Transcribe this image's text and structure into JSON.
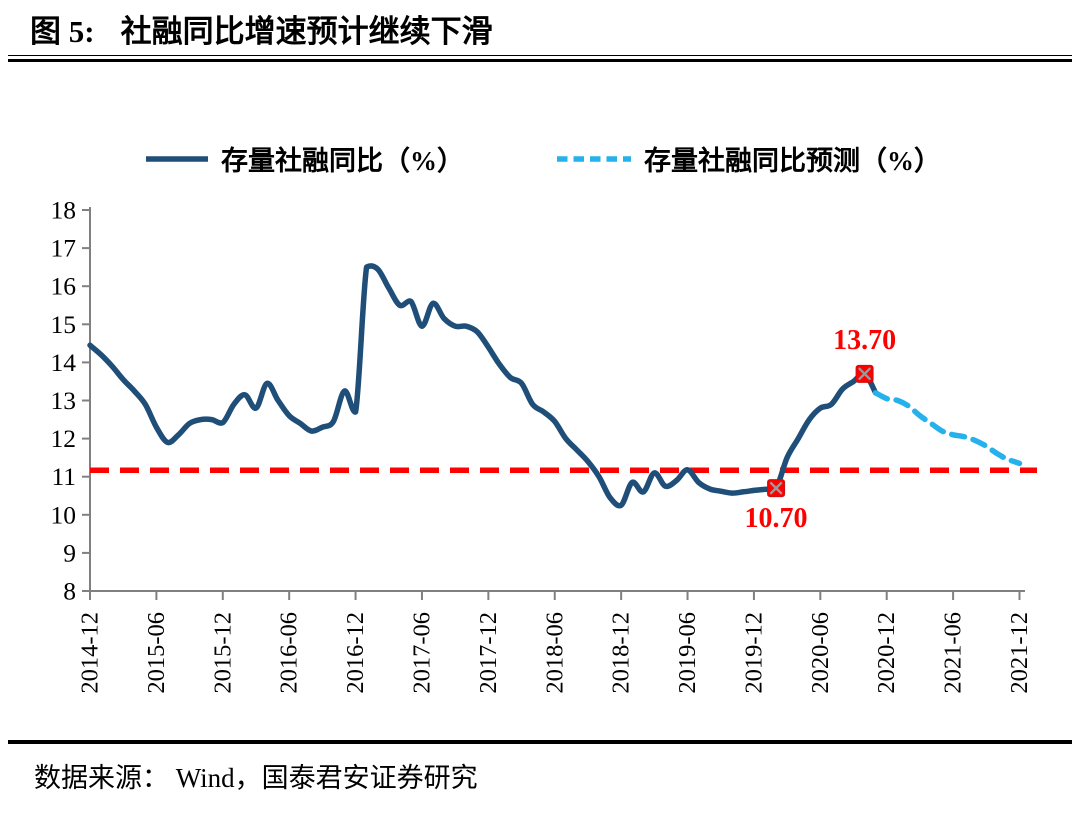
{
  "header": {
    "figure_label": "图 5:",
    "title": "社融同比增速预计继续下滑"
  },
  "footer": {
    "source_note": "数据来源： Wind，国泰君安证券研究"
  },
  "chart_data": {
    "type": "line",
    "title": "社融同比增速预计继续下滑",
    "legend_position": "top",
    "grid": "off",
    "axis_color": "#808080",
    "y_axis": {
      "min": 8,
      "max": 18,
      "step": 1,
      "ticks": [
        8,
        9,
        10,
        11,
        12,
        13,
        14,
        15,
        16,
        17,
        18
      ]
    },
    "x_axis": {
      "start_month": "2014-12",
      "end_month": "2021-12",
      "tick_labels": [
        "2014-12",
        "2015-06",
        "2015-12",
        "2016-06",
        "2016-12",
        "2017-06",
        "2017-12",
        "2018-06",
        "2018-12",
        "2019-06",
        "2019-12",
        "2020-06",
        "2020-12",
        "2021-06",
        "2021-12"
      ]
    },
    "reference_line": {
      "value": 11.17,
      "color": "#ff0000",
      "style": "dashed"
    },
    "marker": {
      "shape": "square-x",
      "fill": "#ff0000",
      "x_color": "#9a9a9a"
    },
    "annotations": [
      {
        "label": "13.70",
        "month": "2020-10",
        "value": 13.7,
        "placement": "above"
      },
      {
        "label": "10.70",
        "month": "2020-02",
        "value": 10.7,
        "placement": "below"
      }
    ],
    "series": [
      {
        "name": "存量社融同比（%）",
        "style": "solid",
        "color": "#1f4e79",
        "points": [
          [
            "2014-12",
            14.45
          ],
          [
            "2015-01",
            14.2
          ],
          [
            "2015-02",
            13.9
          ],
          [
            "2015-03",
            13.55
          ],
          [
            "2015-04",
            13.25
          ],
          [
            "2015-05",
            12.9
          ],
          [
            "2015-06",
            12.3
          ],
          [
            "2015-07",
            11.9
          ],
          [
            "2015-08",
            12.1
          ],
          [
            "2015-09",
            12.4
          ],
          [
            "2015-10",
            12.5
          ],
          [
            "2015-11",
            12.5
          ],
          [
            "2015-12",
            12.42
          ],
          [
            "2016-01",
            12.9
          ],
          [
            "2016-02",
            13.15
          ],
          [
            "2016-03",
            12.8
          ],
          [
            "2016-04",
            13.45
          ],
          [
            "2016-05",
            13.0
          ],
          [
            "2016-06",
            12.6
          ],
          [
            "2016-07",
            12.4
          ],
          [
            "2016-08",
            12.2
          ],
          [
            "2016-09",
            12.3
          ],
          [
            "2016-10",
            12.45
          ],
          [
            "2016-11",
            13.25
          ],
          [
            "2016-12",
            12.7
          ],
          [
            "2017-01",
            16.5
          ],
          [
            "2017-02",
            16.45
          ],
          [
            "2017-03",
            15.95
          ],
          [
            "2017-04",
            15.5
          ],
          [
            "2017-05",
            15.6
          ],
          [
            "2017-06",
            14.95
          ],
          [
            "2017-07",
            15.55
          ],
          [
            "2017-08",
            15.15
          ],
          [
            "2017-09",
            14.95
          ],
          [
            "2017-10",
            14.95
          ],
          [
            "2017-11",
            14.8
          ],
          [
            "2017-12",
            14.4
          ],
          [
            "2018-01",
            13.95
          ],
          [
            "2018-02",
            13.6
          ],
          [
            "2018-03",
            13.45
          ],
          [
            "2018-04",
            12.9
          ],
          [
            "2018-05",
            12.7
          ],
          [
            "2018-06",
            12.45
          ],
          [
            "2018-07",
            12.0
          ],
          [
            "2018-08",
            11.7
          ],
          [
            "2018-09",
            11.4
          ],
          [
            "2018-10",
            11.0
          ],
          [
            "2018-11",
            10.45
          ],
          [
            "2018-12",
            10.25
          ],
          [
            "2019-01",
            10.85
          ],
          [
            "2019-02",
            10.6
          ],
          [
            "2019-03",
            11.1
          ],
          [
            "2019-04",
            10.75
          ],
          [
            "2019-05",
            10.9
          ],
          [
            "2019-06",
            11.18
          ],
          [
            "2019-07",
            10.85
          ],
          [
            "2019-08",
            10.68
          ],
          [
            "2019-09",
            10.62
          ],
          [
            "2019-10",
            10.57
          ],
          [
            "2019-11",
            10.6
          ],
          [
            "2019-12",
            10.64
          ],
          [
            "2020-01",
            10.67
          ],
          [
            "2020-02",
            10.7
          ],
          [
            "2020-03",
            11.5
          ],
          [
            "2020-04",
            12.0
          ],
          [
            "2020-05",
            12.5
          ],
          [
            "2020-06",
            12.8
          ],
          [
            "2020-07",
            12.9
          ],
          [
            "2020-08",
            13.3
          ],
          [
            "2020-09",
            13.5
          ],
          [
            "2020-10",
            13.7
          ],
          [
            "2020-11",
            13.2
          ]
        ]
      },
      {
        "name": "存量社融同比预测（%）",
        "style": "dashed",
        "color": "#25b2ec",
        "points": [
          [
            "2020-11",
            13.2
          ],
          [
            "2020-12",
            13.05
          ],
          [
            "2021-01",
            13.0
          ],
          [
            "2021-02",
            12.85
          ],
          [
            "2021-03",
            12.6
          ],
          [
            "2021-04",
            12.4
          ],
          [
            "2021-05",
            12.2
          ],
          [
            "2021-06",
            12.1
          ],
          [
            "2021-07",
            12.05
          ],
          [
            "2021-08",
            11.95
          ],
          [
            "2021-09",
            11.8
          ],
          [
            "2021-10",
            11.6
          ],
          [
            "2021-11",
            11.45
          ],
          [
            "2021-12",
            11.35
          ]
        ]
      }
    ]
  }
}
